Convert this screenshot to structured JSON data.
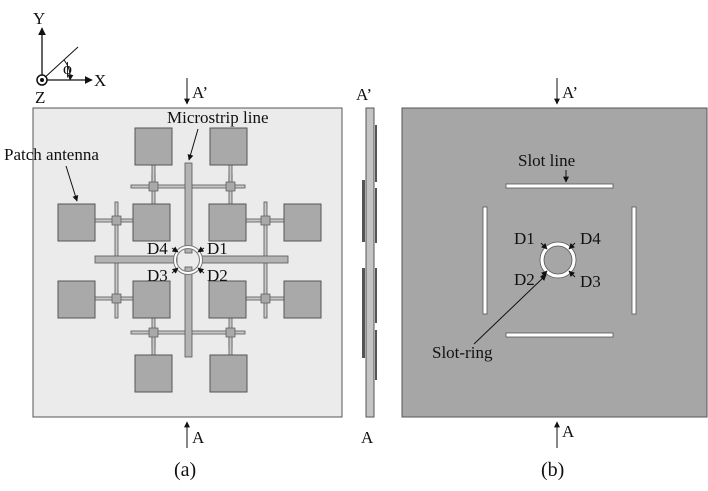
{
  "axes": {
    "y": "Y",
    "x": "X",
    "z": "Z",
    "angle": "ϕ"
  },
  "panel_a": {
    "cut_top": "A’",
    "cut_bottom": "A",
    "microstrip_label": "Microstrip line",
    "patch_label": "Patch antenna",
    "diodes": [
      "D4",
      "D1",
      "D3",
      "D2"
    ],
    "caption": "(a)"
  },
  "side_view": {
    "cut_top": "A’",
    "cut_bottom": "A"
  },
  "panel_b": {
    "cut_top": "A’",
    "cut_bottom": "A",
    "slot_line_label": "Slot line",
    "slot_ring_label": "Slot-ring",
    "diodes": [
      "D1",
      "D4",
      "D2",
      "D3"
    ],
    "caption": "(b)"
  },
  "colors": {
    "substrate_light": "#ebebeb",
    "metal": "#a9a9a9",
    "ground": "#a6a6a6"
  }
}
